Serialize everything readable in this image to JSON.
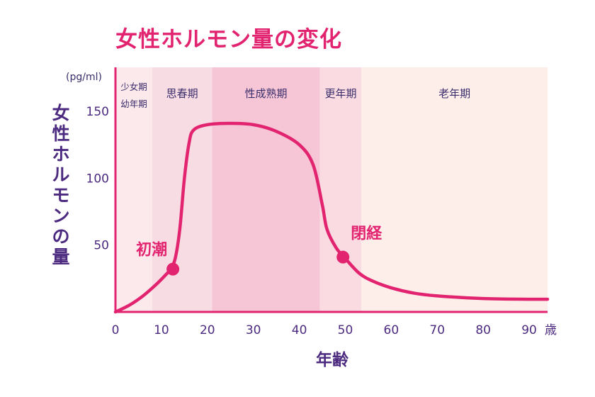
{
  "chart_data": {
    "type": "line",
    "title": "女性ホルモン量の変化",
    "xlabel": "年齢",
    "ylabel": "女性ホルモンの量",
    "y_unit": "(pg/ml)",
    "x_unit": "歳",
    "xlim": [
      0,
      94
    ],
    "ylim": [
      0,
      160
    ],
    "x_ticks": [
      0,
      10,
      20,
      30,
      40,
      50,
      60,
      70,
      80,
      90
    ],
    "y_ticks": [
      50,
      100,
      150
    ],
    "grid": false,
    "phases": [
      {
        "label": [
          "少女期",
          "幼年期"
        ],
        "from": 0,
        "to": 8,
        "color": "#fbe9ec"
      },
      {
        "label": [
          "思春期"
        ],
        "from": 8,
        "to": 21,
        "color": "#f8dce4"
      },
      {
        "label": [
          "性成熟期"
        ],
        "from": 21,
        "to": 44.5,
        "color": "#f6c6d6"
      },
      {
        "label": [
          "更年期"
        ],
        "from": 44.5,
        "to": 53.5,
        "color": "#fadbe1"
      },
      {
        "label": [
          "老年期"
        ],
        "from": 53.5,
        "to": 94,
        "color": "#fdeeea"
      }
    ],
    "series": [
      {
        "color": "#e2236f",
        "points": [
          [
            0,
            0
          ],
          [
            3,
            5
          ],
          [
            6,
            12
          ],
          [
            9,
            21
          ],
          [
            11,
            28
          ],
          [
            12,
            32
          ],
          [
            13,
            40
          ],
          [
            14,
            62
          ],
          [
            15,
            100
          ],
          [
            16,
            126
          ],
          [
            17,
            136
          ],
          [
            20,
            140
          ],
          [
            25,
            141
          ],
          [
            30,
            140
          ],
          [
            35,
            135
          ],
          [
            40,
            125
          ],
          [
            43,
            110
          ],
          [
            45,
            80
          ],
          [
            46,
            62
          ],
          [
            48,
            48
          ],
          [
            50,
            40
          ],
          [
            53,
            29
          ],
          [
            56,
            23
          ],
          [
            60,
            18
          ],
          [
            65,
            14
          ],
          [
            70,
            12
          ],
          [
            80,
            10
          ],
          [
            90,
            9.5
          ],
          [
            94,
            9.5
          ]
        ]
      }
    ],
    "annotations": [
      {
        "text": "初潮",
        "x": 12.5,
        "y": 32
      },
      {
        "text": "閉経",
        "x": 49.5,
        "y": 41
      }
    ]
  }
}
